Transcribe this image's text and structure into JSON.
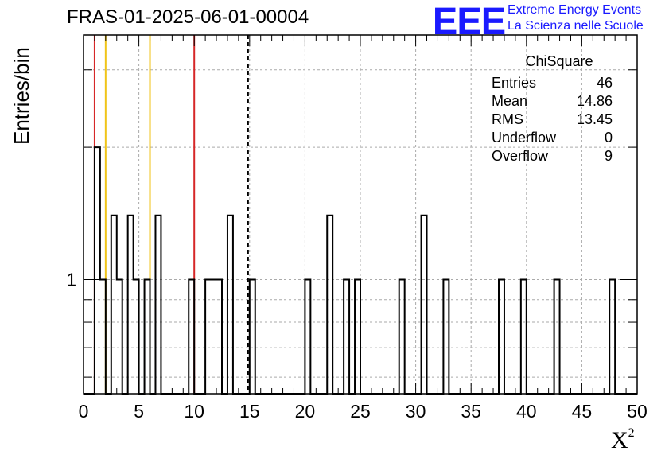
{
  "title": "FRAS-01-2025-06-01-00004",
  "logo": {
    "mark": "EEE",
    "line1": "Extreme Energy Events",
    "line2": "La Scienza nelle Scuole"
  },
  "stats": {
    "title": "ChiSquare",
    "rows": [
      {
        "label": "Entries",
        "value": "46"
      },
      {
        "label": "Mean",
        "value": "14.86"
      },
      {
        "label": "RMS",
        "value": "13.45"
      },
      {
        "label": "Underflow",
        "value": "0"
      },
      {
        "label": "Overflow",
        "value": "9"
      }
    ]
  },
  "colors": {
    "red": "#d62728",
    "yellow": "#f0c419",
    "black": "#000000"
  },
  "chart_data": {
    "type": "bar",
    "title": "FRAS-01-2025-06-01-00004",
    "xlabel": "X",
    "xlabel_sup": "2",
    "ylabel": "Entries/bin",
    "x_range": [
      0,
      50
    ],
    "bin_width": 0.5,
    "y_scale": "log",
    "y_range": [
      0.55,
      3.6
    ],
    "y_tick_label": "1",
    "x_ticks": [
      "0",
      "5",
      "10",
      "15",
      "20",
      "25",
      "30",
      "35",
      "40",
      "45",
      "50"
    ],
    "bins": [
      {
        "x0": 1.0,
        "count": 2
      },
      {
        "x0": 1.5,
        "count": 1
      },
      {
        "x0": 2.5,
        "count": 1.4
      },
      {
        "x0": 3.0,
        "count": 1
      },
      {
        "x0": 4.0,
        "count": 1.4
      },
      {
        "x0": 4.5,
        "count": 1
      },
      {
        "x0": 5.5,
        "count": 1
      },
      {
        "x0": 6.5,
        "count": 1.4
      },
      {
        "x0": 9.5,
        "count": 1
      },
      {
        "x0": 11.0,
        "count": 1
      },
      {
        "x0": 11.5,
        "count": 1
      },
      {
        "x0": 12.0,
        "count": 1
      },
      {
        "x0": 13.0,
        "count": 1.4
      },
      {
        "x0": 15.0,
        "count": 1
      },
      {
        "x0": 20.0,
        "count": 1
      },
      {
        "x0": 22.0,
        "count": 1.4
      },
      {
        "x0": 23.5,
        "count": 1
      },
      {
        "x0": 24.5,
        "count": 1
      },
      {
        "x0": 28.5,
        "count": 1
      },
      {
        "x0": 30.5,
        "count": 1.4
      },
      {
        "x0": 32.5,
        "count": 1
      },
      {
        "x0": 37.5,
        "count": 1
      },
      {
        "x0": 39.5,
        "count": 1
      },
      {
        "x0": 42.5,
        "count": 1
      },
      {
        "x0": 47.5,
        "count": 1
      }
    ],
    "vlines": [
      {
        "x": 1.0,
        "color": "red",
        "style": "solid"
      },
      {
        "x": 2.0,
        "color": "yellow",
        "style": "solid"
      },
      {
        "x": 6.0,
        "color": "yellow",
        "style": "solid"
      },
      {
        "x": 10.0,
        "color": "red",
        "style": "solid"
      },
      {
        "x": 14.86,
        "color": "black",
        "style": "dashed"
      }
    ],
    "grid": true
  }
}
